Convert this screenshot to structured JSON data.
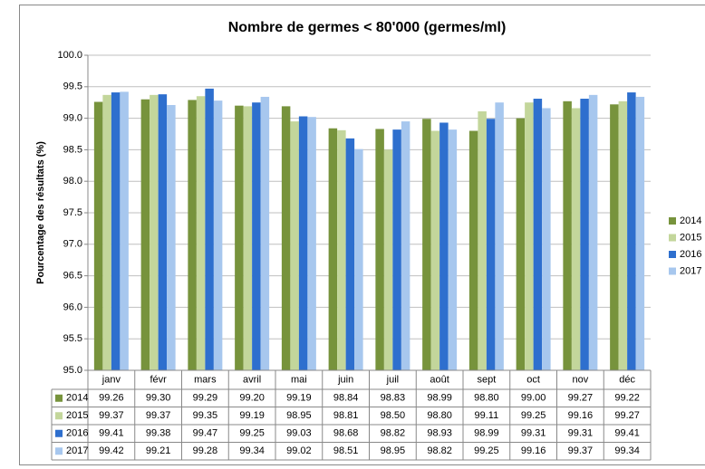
{
  "chart_data": {
    "type": "bar",
    "title": "Nombre de germes < 80'000 (germes/ml)",
    "y_label": "Pourcentage des résultats (%)",
    "categories": [
      "janv",
      "févr",
      "mars",
      "avril",
      "mai",
      "juin",
      "juil",
      "août",
      "sept",
      "oct",
      "nov",
      "déc"
    ],
    "series": [
      {
        "name": "2014",
        "color": "#77933c",
        "values": [
          99.26,
          99.3,
          99.29,
          99.2,
          99.19,
          98.84,
          98.83,
          98.99,
          98.8,
          99.0,
          99.27,
          99.22
        ],
        "value_labels": [
          "99.26",
          "99.30",
          "99.29",
          "99.20",
          "99.19",
          "98.84",
          "98.83",
          "98.99",
          "98.80",
          "99.00",
          "99.27",
          "99.22"
        ]
      },
      {
        "name": "2015",
        "color": "#c3d69b",
        "values": [
          99.37,
          99.37,
          99.35,
          99.19,
          98.95,
          98.81,
          98.5,
          98.8,
          99.11,
          99.25,
          99.16,
          99.27
        ],
        "value_labels": [
          "99.37",
          "99.37",
          "99.35",
          "99.19",
          "98.95",
          "98.81",
          "98.50",
          "98.80",
          "99.11",
          "99.25",
          "99.16",
          "99.27"
        ]
      },
      {
        "name": "2016",
        "color": "#2e6fce",
        "values": [
          99.41,
          99.38,
          99.47,
          99.25,
          99.03,
          98.68,
          98.82,
          98.93,
          98.99,
          99.31,
          99.31,
          99.41
        ],
        "value_labels": [
          "99.41",
          "99.38",
          "99.47",
          "99.25",
          "99.03",
          "98.68",
          "98.82",
          "98.93",
          "98.99",
          "99.31",
          "99.31",
          "99.41"
        ]
      },
      {
        "name": "2017",
        "color": "#a7c7ee",
        "values": [
          99.42,
          99.21,
          99.28,
          99.34,
          99.02,
          98.51,
          98.95,
          98.82,
          99.25,
          99.16,
          99.37,
          99.34
        ],
        "value_labels": [
          "99.42",
          "99.21",
          "99.28",
          "99.34",
          "99.02",
          "98.51",
          "98.95",
          "98.82",
          "99.25",
          "99.16",
          "99.37",
          "99.34"
        ]
      }
    ],
    "ylim": [
      95,
      100
    ],
    "yticks": [
      {
        "value": 95,
        "label": "95.0"
      },
      95.5,
      {
        "value": 96,
        "label": "96.0"
      },
      96.5,
      {
        "value": 97,
        "label": "97.0"
      },
      97.5,
      {
        "value": 98,
        "label": "98.0"
      },
      98.5,
      {
        "value": 99,
        "label": "99.0"
      },
      99.5,
      {
        "value": 100,
        "label": "100.0"
      }
    ],
    "grid": true,
    "legend": "right",
    "data_table": true
  }
}
